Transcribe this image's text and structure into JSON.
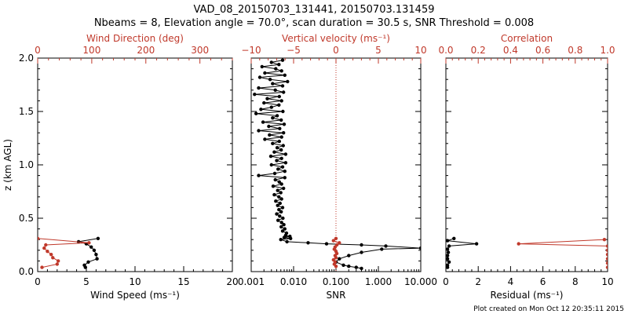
{
  "title_line1": "VAD_08_20150703_131441, 20150703.131459",
  "title_line2": "Nbeams = 8, Elevation angle = 70.0°, scan duration = 30.5 s, SNR Threshold = 0.008",
  "footer": "Plot created on Mon Oct 12 20:35:11 2015",
  "ylabel": "z (km AGL)",
  "colors": {
    "primary": "#000000",
    "secondary": "#c0392b"
  },
  "chart_data": [
    {
      "type": "line",
      "panel": "wind",
      "xlabel_bottom": "Wind Speed (ms⁻¹)",
      "xlabel_top": "Wind Direction (deg)",
      "ylim": [
        0,
        2.0
      ],
      "yticks": [
        "0.0",
        "0.5",
        "1.0",
        "1.5",
        "2.0"
      ],
      "x_bottom_lim": [
        0,
        20
      ],
      "x_bottom_ticks": [
        "0",
        "5",
        "10",
        "15",
        "20"
      ],
      "x_top_lim": [
        0,
        360
      ],
      "x_top_ticks": [
        "0",
        "100",
        "200",
        "300"
      ],
      "series": [
        {
          "name": "Wind Speed (ms⁻¹)",
          "axis": "bottom",
          "color": "#000000",
          "points": [
            [
              6.2,
              0.31
            ],
            [
              4.2,
              0.28
            ],
            [
              5.0,
              0.26
            ],
            [
              5.5,
              0.23
            ],
            [
              5.8,
              0.2
            ],
            [
              6.0,
              0.16
            ],
            [
              6.1,
              0.12
            ],
            [
              5.2,
              0.09
            ],
            [
              4.8,
              0.06
            ],
            [
              4.9,
              0.04
            ]
          ]
        },
        {
          "name": "Wind Direction (deg)",
          "axis": "top",
          "color": "#c0392b",
          "points": [
            [
              0,
              0.31
            ],
            [
              95,
              0.27
            ],
            [
              15,
              0.25
            ],
            [
              12,
              0.22
            ],
            [
              18,
              0.19
            ],
            [
              25,
              0.16
            ],
            [
              28,
              0.13
            ],
            [
              38,
              0.1
            ],
            [
              36,
              0.07
            ],
            [
              8,
              0.04
            ]
          ]
        }
      ]
    },
    {
      "type": "line",
      "panel": "snr",
      "xlabel_bottom": "SNR",
      "xlabel_top": "Vertical velocity (ms⁻¹)",
      "ylim": [
        0,
        2.0
      ],
      "x_bottom_scale": "log",
      "x_bottom_lim": [
        0.001,
        10
      ],
      "x_bottom_ticks": [
        "0.001",
        "0.010",
        "0.100",
        "1.000",
        "10.000"
      ],
      "x_top_lim": [
        -10,
        10
      ],
      "x_top_ticks": [
        "−10",
        "−5",
        "0",
        "5",
        "10"
      ],
      "x_top_ref": 0,
      "series": [
        {
          "name": "SNR",
          "axis": "bottom",
          "color": "#000000",
          "points": [
            [
              0.0055,
              1.98
            ],
            [
              0.003,
              1.96
            ],
            [
              0.0045,
              1.94
            ],
            [
              0.0018,
              1.92
            ],
            [
              0.0038,
              1.9
            ],
            [
              0.0052,
              1.88
            ],
            [
              0.0021,
              1.86
            ],
            [
              0.0062,
              1.84
            ],
            [
              0.0016,
              1.82
            ],
            [
              0.0028,
              1.8
            ],
            [
              0.0072,
              1.78
            ],
            [
              0.0032,
              1.76
            ],
            [
              0.0055,
              1.74
            ],
            [
              0.0015,
              1.72
            ],
            [
              0.0037,
              1.7
            ],
            [
              0.0058,
              1.68
            ],
            [
              0.0012,
              1.66
            ],
            [
              0.0046,
              1.64
            ],
            [
              0.0024,
              1.62
            ],
            [
              0.0052,
              1.6
            ],
            [
              0.002,
              1.58
            ],
            [
              0.0045,
              1.56
            ],
            [
              0.003,
              1.54
            ],
            [
              0.0017,
              1.52
            ],
            [
              0.0056,
              1.5
            ],
            [
              0.0013,
              1.48
            ],
            [
              0.0041,
              1.46
            ],
            [
              0.0032,
              1.44
            ],
            [
              0.0051,
              1.42
            ],
            [
              0.0019,
              1.4
            ],
            [
              0.006,
              1.38
            ],
            [
              0.0026,
              1.36
            ],
            [
              0.0047,
              1.34
            ],
            [
              0.0015,
              1.32
            ],
            [
              0.0058,
              1.3
            ],
            [
              0.0027,
              1.28
            ],
            [
              0.0052,
              1.26
            ],
            [
              0.0021,
              1.24
            ],
            [
              0.0046,
              1.22
            ],
            [
              0.0032,
              1.2
            ],
            [
              0.0057,
              1.18
            ],
            [
              0.0041,
              1.16
            ],
            [
              0.0051,
              1.14
            ],
            [
              0.0035,
              1.12
            ],
            [
              0.0065,
              1.1
            ],
            [
              0.0029,
              1.08
            ],
            [
              0.0052,
              1.06
            ],
            [
              0.004,
              1.04
            ],
            [
              0.0065,
              1.02
            ],
            [
              0.003,
              1.0
            ],
            [
              0.0055,
              0.98
            ],
            [
              0.0043,
              0.96
            ],
            [
              0.0062,
              0.94
            ],
            [
              0.0036,
              0.92
            ],
            [
              0.0015,
              0.9
            ],
            [
              0.0062,
              0.88
            ],
            [
              0.0037,
              0.86
            ],
            [
              0.0046,
              0.84
            ],
            [
              0.0052,
              0.82
            ],
            [
              0.0033,
              0.8
            ],
            [
              0.0058,
              0.78
            ],
            [
              0.0042,
              0.76
            ],
            [
              0.005,
              0.74
            ],
            [
              0.0035,
              0.72
            ],
            [
              0.0045,
              0.7
            ],
            [
              0.0052,
              0.68
            ],
            [
              0.0038,
              0.66
            ],
            [
              0.0048,
              0.64
            ],
            [
              0.0042,
              0.62
            ],
            [
              0.0055,
              0.6
            ],
            [
              0.0045,
              0.58
            ],
            [
              0.0051,
              0.56
            ],
            [
              0.004,
              0.54
            ],
            [
              0.0047,
              0.52
            ],
            [
              0.0056,
              0.5
            ],
            [
              0.0043,
              0.48
            ],
            [
              0.0052,
              0.46
            ],
            [
              0.0059,
              0.44
            ],
            [
              0.0051,
              0.42
            ],
            [
              0.0062,
              0.4
            ],
            [
              0.0055,
              0.38
            ],
            [
              0.0068,
              0.36
            ],
            [
              0.0065,
              0.34
            ],
            [
              0.0082,
              0.33
            ],
            [
              0.006,
              0.32
            ],
            [
              0.0085,
              0.31
            ],
            [
              0.005,
              0.3
            ],
            [
              0.007,
              0.28
            ],
            [
              0.022,
              0.27
            ],
            [
              0.06,
              0.26
            ],
            [
              0.4,
              0.25
            ],
            [
              1.5,
              0.24
            ],
            [
              10.0,
              0.22
            ],
            [
              1.2,
              0.21
            ],
            [
              0.4,
              0.18
            ],
            [
              0.2,
              0.15
            ],
            [
              0.12,
              0.12
            ],
            [
              0.1,
              0.09
            ],
            [
              0.15,
              0.06
            ],
            [
              0.2,
              0.05
            ],
            [
              0.3,
              0.04
            ],
            [
              0.4,
              0.03
            ]
          ]
        },
        {
          "name": "Vertical velocity (ms⁻¹)",
          "axis": "top",
          "color": "#c0392b",
          "points": [
            [
              0.0,
              0.31
            ],
            [
              -0.3,
              0.29
            ],
            [
              0.4,
              0.27
            ],
            [
              0.1,
              0.25
            ],
            [
              -0.1,
              0.23
            ],
            [
              -0.2,
              0.21
            ],
            [
              0.0,
              0.19
            ],
            [
              0.1,
              0.17
            ],
            [
              -0.1,
              0.15
            ],
            [
              0.0,
              0.13
            ],
            [
              -0.3,
              0.11
            ],
            [
              -0.1,
              0.09
            ],
            [
              -0.2,
              0.07
            ],
            [
              0.0,
              0.05
            ]
          ]
        }
      ]
    },
    {
      "type": "line",
      "panel": "residual",
      "xlabel_bottom": "Residual (ms⁻¹)",
      "xlabel_top": "Correlation",
      "ylim": [
        0,
        2.0
      ],
      "x_bottom_lim": [
        0,
        10
      ],
      "x_bottom_ticks": [
        "0",
        "2",
        "4",
        "6",
        "8",
        "10"
      ],
      "x_top_lim": [
        0,
        1.0
      ],
      "x_top_ticks": [
        "0.0",
        "0.2",
        "0.4",
        "0.6",
        "0.8",
        "1.0"
      ],
      "series": [
        {
          "name": "Residual (ms⁻¹)",
          "axis": "bottom",
          "color": "#000000",
          "points": [
            [
              0.5,
              0.31
            ],
            [
              0.1,
              0.29
            ],
            [
              1.9,
              0.26
            ],
            [
              0.2,
              0.24
            ],
            [
              0.1,
              0.21
            ],
            [
              0.15,
              0.18
            ],
            [
              0.1,
              0.15
            ],
            [
              0.1,
              0.12
            ],
            [
              0.2,
              0.09
            ],
            [
              0.1,
              0.06
            ],
            [
              0.1,
              0.04
            ]
          ]
        },
        {
          "name": "Correlation",
          "axis": "top",
          "color": "#c0392b",
          "points": [
            [
              0.98,
              0.3
            ],
            [
              0.45,
              0.26
            ],
            [
              1.0,
              0.24
            ],
            [
              1.0,
              0.2
            ],
            [
              1.0,
              0.16
            ],
            [
              1.0,
              0.12
            ],
            [
              1.0,
              0.08
            ],
            [
              1.0,
              0.04
            ]
          ]
        }
      ]
    }
  ]
}
